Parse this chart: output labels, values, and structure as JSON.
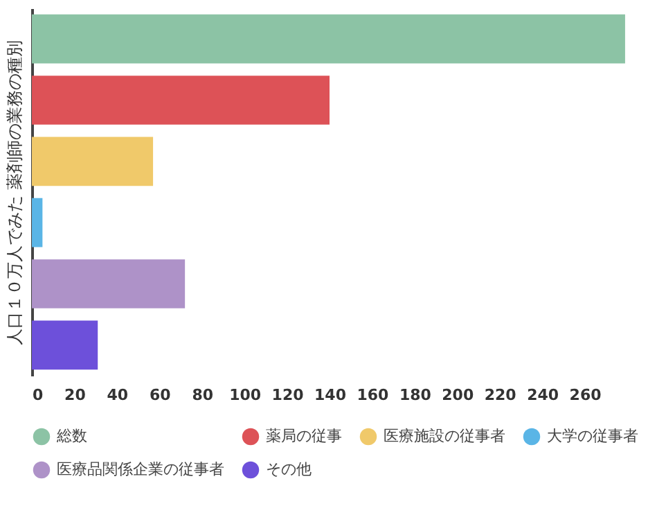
{
  "chart_data": {
    "type": "bar",
    "orientation": "horizontal",
    "ylabel": "人口１０万人でみた 薬剤師の業務の種別",
    "categories": [
      null,
      null,
      null,
      null,
      null,
      null
    ],
    "series": [
      {
        "name": "総数",
        "color": "#8cc3a5",
        "values": [
          279,
          null,
          null,
          null,
          null,
          null
        ]
      },
      {
        "name": "薬局の従事",
        "color": "#dd5257",
        "values": [
          null,
          140,
          null,
          null,
          null,
          null
        ]
      },
      {
        "name": "医療施設の従事者",
        "color": "#f0c96a",
        "values": [
          null,
          null,
          57,
          null,
          null,
          null
        ]
      },
      {
        "name": "大学の従事者",
        "color": "#5ab5e6",
        "values": [
          null,
          null,
          null,
          5,
          null,
          null
        ]
      },
      {
        "name": "医療品関係企業の従事者",
        "color": "#ae92c8",
        "values": [
          null,
          null,
          null,
          null,
          72,
          null
        ]
      },
      {
        "name": "その他",
        "color": "#6d50da",
        "values": [
          null,
          null,
          null,
          null,
          null,
          31
        ]
      }
    ],
    "xlim": [
      0,
      280
    ],
    "xticks": [
      0,
      20,
      40,
      60,
      80,
      100,
      120,
      140,
      160,
      180,
      200,
      220,
      240,
      260
    ],
    "tick_labels": "x",
    "grid": false,
    "legend": "bottom"
  }
}
